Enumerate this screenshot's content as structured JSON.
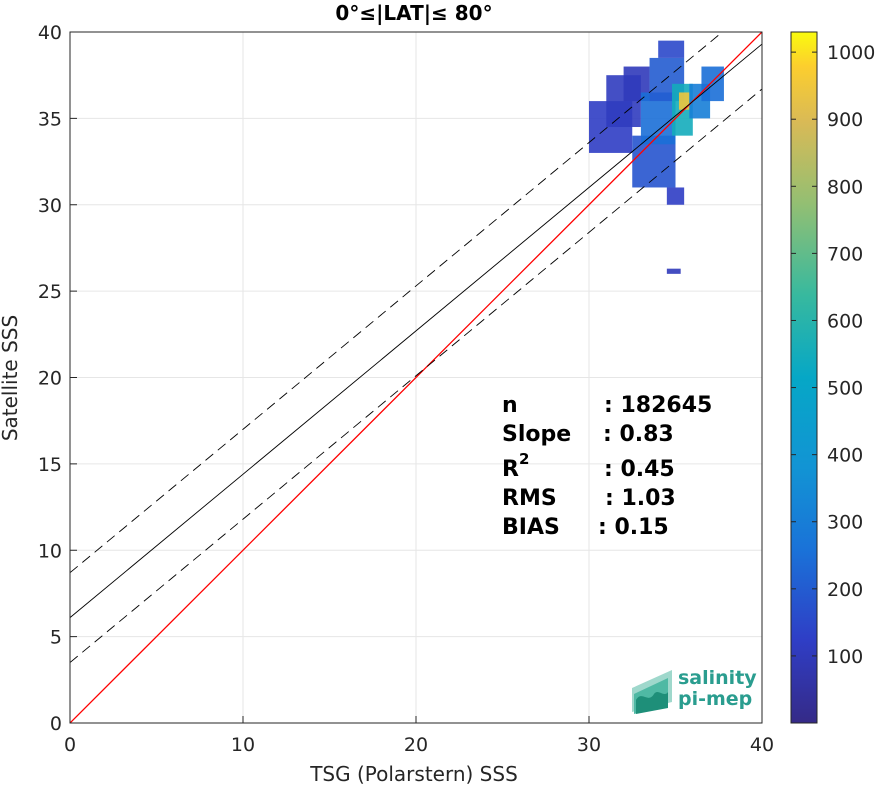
{
  "chart_data": {
    "type": "heatmap",
    "title": "0°≤|LAT|≤ 80°",
    "xlabel": "TSG (Polarstern) SSS",
    "ylabel": "Satellite SSS",
    "xlim": [
      0,
      40
    ],
    "ylim": [
      0,
      40
    ],
    "xticks": [
      "0",
      "10",
      "20",
      "30",
      "40"
    ],
    "yticks": [
      "0",
      "5",
      "10",
      "15",
      "20",
      "25",
      "30",
      "35",
      "40"
    ],
    "grid": true,
    "colorbar": {
      "ticks": [
        "100",
        "200",
        "300",
        "400",
        "500",
        "600",
        "700",
        "800",
        "900",
        "1000"
      ],
      "values": [
        100,
        200,
        300,
        400,
        500,
        600,
        700,
        800,
        900,
        1000
      ],
      "range": [
        0,
        1030
      ],
      "colormap": "parula"
    },
    "lines": [
      {
        "name": "identity",
        "color": "#ff0000",
        "style": "solid",
        "x": [
          0,
          40
        ],
        "y": [
          0,
          40
        ]
      },
      {
        "name": "regression",
        "color": "#000000",
        "style": "solid",
        "x": [
          0,
          40
        ],
        "y": [
          6.1,
          39.3
        ]
      },
      {
        "name": "regression-upper",
        "color": "#000000",
        "style": "dashed",
        "x": [
          0,
          40
        ],
        "y": [
          8.7,
          41.9
        ]
      },
      {
        "name": "regression-lower",
        "color": "#000000",
        "style": "dashed",
        "x": [
          0,
          40
        ],
        "y": [
          3.5,
          36.7
        ]
      }
    ],
    "density": [
      {
        "x": 30,
        "y": 33,
        "w": 2.5,
        "h": 3,
        "value": 120
      },
      {
        "x": 31,
        "y": 34.5,
        "w": 2,
        "h": 3,
        "value": 110
      },
      {
        "x": 32,
        "y": 36,
        "w": 1.5,
        "h": 2,
        "value": 100
      },
      {
        "x": 32.5,
        "y": 31,
        "w": 2.5,
        "h": 3,
        "value": 180
      },
      {
        "x": 33,
        "y": 33.5,
        "w": 2,
        "h": 3,
        "value": 250
      },
      {
        "x": 33.5,
        "y": 36,
        "w": 2,
        "h": 2.5,
        "value": 200
      },
      {
        "x": 34,
        "y": 38.5,
        "w": 1.5,
        "h": 1,
        "value": 150
      },
      {
        "x": 34.5,
        "y": 30,
        "w": 1,
        "h": 1,
        "value": 120
      },
      {
        "x": 34.8,
        "y": 34,
        "w": 1.2,
        "h": 3,
        "value": 550
      },
      {
        "x": 35.2,
        "y": 35.5,
        "w": 0.6,
        "h": 1,
        "value": 950
      },
      {
        "x": 35.8,
        "y": 35,
        "w": 1.2,
        "h": 2,
        "value": 300
      },
      {
        "x": 36.5,
        "y": 36,
        "w": 1.3,
        "h": 2,
        "value": 250
      },
      {
        "x": 34.5,
        "y": 26,
        "w": 0.8,
        "h": 0.3,
        "value": 100
      }
    ],
    "stats": {
      "n_label": "n",
      "n_value": ": 182645",
      "slope_label": "Slope",
      "slope_value": ": 0.83",
      "r2_label": "R",
      "r2_sup": "2",
      "r2_value": ": 0.45",
      "rms_label": "RMS",
      "rms_value": ": 1.03",
      "bias_label": "BIAS",
      "bias_value": ": 0.15"
    }
  },
  "logo": {
    "line1": "salinity",
    "line2": "pi-mep"
  }
}
